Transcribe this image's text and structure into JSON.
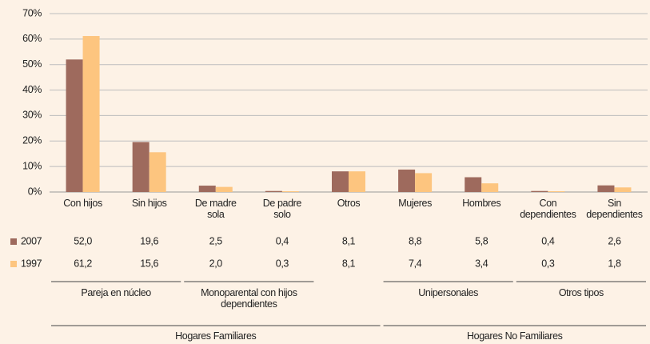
{
  "chart_data": {
    "type": "bar",
    "categories": [
      "Con hijos",
      "Sin hijos",
      "De madre\nsola",
      "De padre\nsolo",
      "Otros",
      "Mujeres",
      "Hombres",
      "Con\ndependientes",
      "Sin\ndependientes"
    ],
    "series": [
      {
        "name": "2007",
        "color": "#9e6a5d",
        "values": [
          52.0,
          19.6,
          2.5,
          0.4,
          8.1,
          8.8,
          5.8,
          0.4,
          2.6
        ],
        "value_labels": [
          "52,0",
          "19,6",
          "2,5",
          "0,4",
          "8,1",
          "8,8",
          "5,8",
          "0,4",
          "2,6"
        ]
      },
      {
        "name": "1997",
        "color": "#fdc57f",
        "values": [
          61.2,
          15.6,
          2.0,
          0.3,
          8.1,
          7.4,
          3.4,
          0.3,
          1.8
        ],
        "value_labels": [
          "61,2",
          "15,6",
          "2,0",
          "0,3",
          "8,1",
          "7,4",
          "3,4",
          "0,3",
          "1,8"
        ]
      }
    ],
    "ylim": [
      0,
      70
    ],
    "yticks": [
      {
        "value": 0,
        "label": "0%"
      },
      {
        "value": 10,
        "label": "10%"
      },
      {
        "value": 20,
        "label": "20%"
      },
      {
        "value": 30,
        "label": "30%"
      },
      {
        "value": 40,
        "label": "40%"
      },
      {
        "value": 50,
        "label": "50%"
      },
      {
        "value": 60,
        "label": "60%"
      },
      {
        "value": 70,
        "label": "70%"
      }
    ],
    "grid": true,
    "subgroups": [
      "Pareja en núcleo",
      "Monoparental con hijos\ndependientes",
      "Unipersonales",
      "Otros tipos"
    ],
    "groups": [
      "Hogares Familiares",
      "Hogares No Familiares"
    ]
  }
}
